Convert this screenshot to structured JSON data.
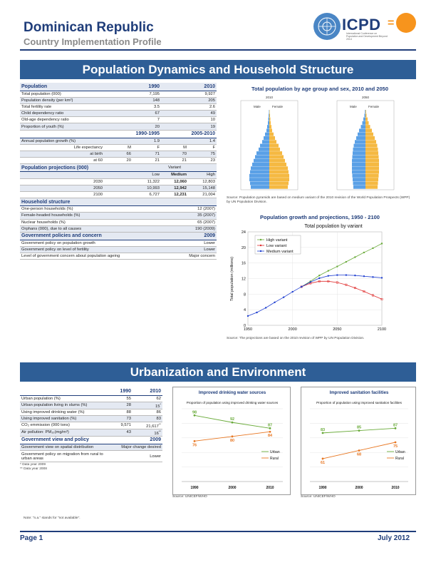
{
  "header": {
    "country": "Dominican Republic",
    "subtitle": "Country Implementation Profile",
    "logo_text": "ICPD",
    "logo_eq": "=",
    "logo_tagline": "International Conference on Population and Development Beyond 2014"
  },
  "section1": {
    "title": "Population Dynamics and Household Structure"
  },
  "population": {
    "heading": "Population",
    "y1": "1990",
    "y2": "2010",
    "rows": [
      {
        "label": "Total population (000)",
        "v1": "7,195",
        "v2": "9,927"
      },
      {
        "label": "Population density (per km²)",
        "v1": "148",
        "v2": "205"
      },
      {
        "label": "Total fertility rate",
        "v1": "3.5",
        "v2": "2.6"
      },
      {
        "label": "Child dependency ratio",
        "v1": "67",
        "v2": "49"
      },
      {
        "label": "Old-age dependency ratio",
        "v1": "7",
        "v2": "10"
      },
      {
        "label": "Proportion of youth (%)",
        "v1": "20",
        "v2": "19"
      }
    ],
    "p1": "1990-1995",
    "p2": "2005-2010",
    "growth": {
      "label": "Annual population growth (%)",
      "v1": "1.9",
      "v2": "1.4"
    },
    "le_label": "Life expectancy",
    "m": "M",
    "f": "F",
    "birth": {
      "label": "at birth",
      "v": [
        "66",
        "71",
        "70",
        "75"
      ]
    },
    "sixty": {
      "label": "at 60",
      "v": [
        "20",
        "21",
        "21",
        "23"
      ]
    }
  },
  "projections": {
    "heading": "Population projections (000)",
    "variant": "Variant",
    "low": "Low",
    "medium": "Medium",
    "high": "High",
    "rows": [
      {
        "year": "2030",
        "low": "11,322",
        "med": "12,060",
        "high": "12,803"
      },
      {
        "year": "2050",
        "low": "10,993",
        "med": "12,942",
        "high": "15,148"
      },
      {
        "year": "2100",
        "low": "6,727",
        "med": "12,231",
        "high": "21,004"
      }
    ]
  },
  "household": {
    "heading": "Household structure",
    "rows": [
      {
        "label": "One-person households (%)",
        "v": "12 (2007)"
      },
      {
        "label": "Female-headed households (%)",
        "v": "35 (2007)"
      },
      {
        "label": "Nuclear households (%)",
        "v": "65 (2007)"
      },
      {
        "label": "Orphans (000), due to all causes",
        "v": "190 (2009)"
      }
    ]
  },
  "policies": {
    "heading": "Government policies and concern",
    "year": "2009",
    "rows": [
      {
        "label": "Government policy on population growth",
        "v": "Lower"
      },
      {
        "label": "Government policy on level of fertility",
        "v": "Lower"
      },
      {
        "label": "Level of government concern about population ageing",
        "v": "Major concern"
      }
    ]
  },
  "pyramid": {
    "title": "Total population by age group and sex, 2010 and 2050",
    "left_year": "2010",
    "right_year": "2050",
    "male": "Male",
    "female": "Female",
    "source": "Source: Population pyramids are based on medium variant of the 2010 revision of the World Population Prospects (WPP) by UN Population Division."
  },
  "growth_chart": {
    "title": "Population growth and projections, 1950 - 2100",
    "subtitle": "Total population by variant",
    "ylabel": "Total population (millions)",
    "source": "Source: The projections are based on the 2010 revision of WPP by UN Population Division."
  },
  "section2": {
    "title": "Urbanization and Environment"
  },
  "urban": {
    "y1": "1990",
    "y2": "2010",
    "rows": [
      {
        "label": "Urban population (%)",
        "v1": "55",
        "v2": "62",
        "sup": ""
      },
      {
        "label": "Urban population living in slums (%)",
        "v1": "28",
        "v2": "15",
        "sup": "*"
      },
      {
        "label": "Using improved drinking water (%)",
        "v1": "88",
        "v2": "86",
        "sup": ""
      },
      {
        "label": "Using improved sanitation (%)",
        "v1": "73",
        "v2": "83",
        "sup": ""
      },
      {
        "label": "CO₂ emmission (000 tons)",
        "v1": "9,571",
        "v2": "21,617",
        "sup": "**"
      },
      {
        "label": "Air pollution: PM₁₀(mg/m³)",
        "v1": "43",
        "v2": "16",
        "sup": "**"
      }
    ],
    "view_heading": "Government view and policy",
    "view_year": "2009",
    "views": [
      {
        "label": "Government view on spatial distribution",
        "v": "Major change desired"
      },
      {
        "label": "Government policy on migration from rural to urban areas",
        "v": "Lower"
      }
    ],
    "fn1": "* Data year 2009",
    "fn2": "** Data year 2008",
    "note": "Note: \"n.a.\" stands for \"not available\"."
  },
  "water_chart": {
    "title": "Improved drinking water sources",
    "subtitle": "Proportion of population using improved drinking water sources",
    "urban": "Urban",
    "rural": "Rural",
    "source": "Source: UNICEF/WHO"
  },
  "sanitation_chart": {
    "title": "Improved sanitation facilities",
    "subtitle": "Proportion of population using improved sanitation facilities",
    "urban": "Urban",
    "rural": "Rural",
    "source": "Source: UNICEF/WHO"
  },
  "footer": {
    "page": "Page 1",
    "date": "July 2012"
  },
  "colors": {
    "navy": "#1f3d7a",
    "banner": "#2e5e96",
    "male": "#5aa0e6",
    "female": "#f5b942",
    "green": "#6aab3a",
    "orange": "#e87722"
  },
  "chart_data": [
    {
      "type": "line",
      "title": "Total population by variant",
      "ylabel": "Total population (millions)",
      "x": [
        1950,
        1960,
        1970,
        1980,
        1990,
        2000,
        2010,
        2020,
        2030,
        2040,
        2050,
        2060,
        2070,
        2080,
        2090,
        2100
      ],
      "ylim": [
        0,
        24
      ],
      "xticks": [
        1950,
        2000,
        2050,
        2100
      ],
      "yticks": [
        0,
        4,
        8,
        12,
        16,
        20,
        24
      ],
      "series": [
        {
          "name": "High variant",
          "color": "#6aab3a",
          "x": [
            2010,
            2020,
            2030,
            2040,
            2050,
            2060,
            2070,
            2080,
            2090,
            2100
          ],
          "values": [
            9.9,
            11.3,
            12.8,
            14.0,
            15.1,
            16.3,
            17.5,
            18.7,
            19.8,
            21.0
          ]
        },
        {
          "name": "Low variant",
          "color": "#e03030",
          "x": [
            2010,
            2020,
            2030,
            2040,
            2050,
            2060,
            2070,
            2080,
            2090,
            2100
          ],
          "values": [
            9.9,
            10.8,
            11.3,
            11.3,
            11.0,
            10.4,
            9.6,
            8.7,
            7.7,
            6.7
          ]
        },
        {
          "name": "Medium variant",
          "color": "#1f3fd0",
          "x": [
            1950,
            1960,
            1970,
            1980,
            1990,
            2000,
            2010,
            2020,
            2030,
            2040,
            2050,
            2060,
            2070,
            2080,
            2090,
            2100
          ],
          "values": [
            2.4,
            3.3,
            4.5,
            5.9,
            7.2,
            8.6,
            9.9,
            11.1,
            12.1,
            12.7,
            12.9,
            12.9,
            12.8,
            12.6,
            12.4,
            12.2
          ]
        }
      ]
    },
    {
      "type": "line",
      "title": "Improved drinking water sources",
      "categories": [
        "1990",
        "2000",
        "2010"
      ],
      "ylim": [
        0,
        100
      ],
      "series": [
        {
          "name": "Urban",
          "color": "#6aab3a",
          "values": [
            98,
            92,
            87
          ]
        },
        {
          "name": "Rural",
          "color": "#e87722",
          "values": [
            76,
            80,
            84
          ]
        }
      ]
    },
    {
      "type": "line",
      "title": "Improved sanitation facilities",
      "categories": [
        "1990",
        "2000",
        "2010"
      ],
      "ylim": [
        0,
        100
      ],
      "series": [
        {
          "name": "Urban",
          "color": "#6aab3a",
          "values": [
            83,
            85,
            87
          ]
        },
        {
          "name": "Rural",
          "color": "#e87722",
          "values": [
            61,
            68,
            75
          ]
        }
      ]
    }
  ]
}
